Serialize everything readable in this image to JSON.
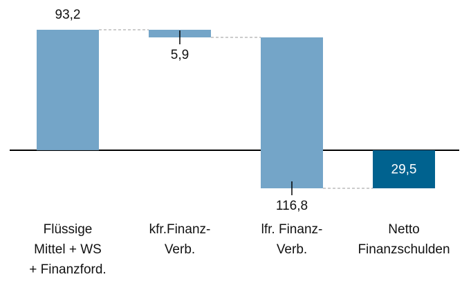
{
  "chart_data": {
    "type": "waterfall",
    "categories": [
      "Flüssige\nMittel + WS\n+ Finanzford.",
      "kfr.Finanz-\nVerb.",
      "lfr. Finanz-\nVerb.",
      "Netto\nFinanzschulden"
    ],
    "values": [
      93.2,
      -5.9,
      -116.8,
      -29.5
    ],
    "value_labels": [
      "93,2",
      "5,9",
      "116,8",
      "29,5"
    ],
    "colors": [
      "#74a5c8",
      "#74a5c8",
      "#74a5c8",
      "#00628f"
    ],
    "total": true
  }
}
